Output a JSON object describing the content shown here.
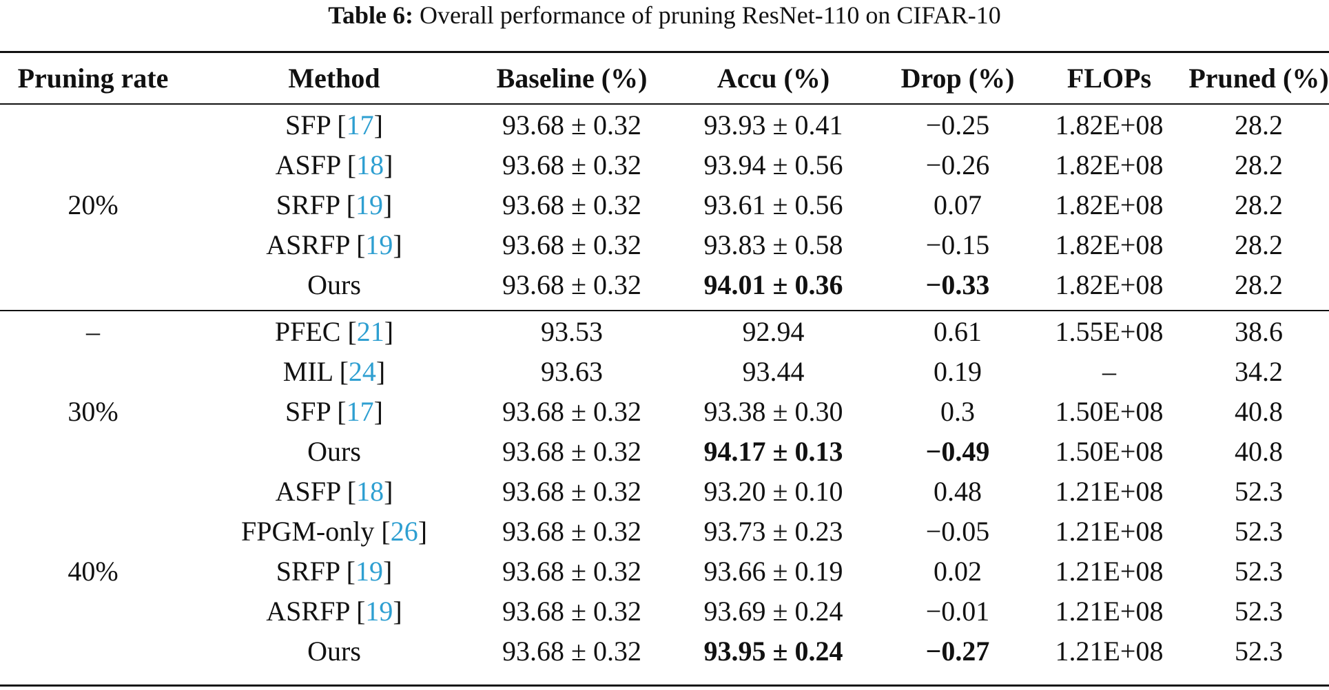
{
  "caption": {
    "label": "Table 6:",
    "text": "Overall performance of pruning ResNet-110 on CIFAR-10"
  },
  "headers": [
    "Pruning rate",
    "Method",
    "Baseline (%)",
    "Accu (%)",
    "Drop (%)",
    "FLOPs",
    "Pruned (%)"
  ],
  "group_a": {
    "rate": "20%",
    "rows": [
      {
        "method": "SFP",
        "ref": "17",
        "baseline": "93.68 ± 0.32",
        "accu": "93.93 ± 0.41",
        "drop": "−0.25",
        "flops": "1.82E+08",
        "pruned": "28.2",
        "best": false
      },
      {
        "method": "ASFP",
        "ref": "18",
        "baseline": "93.68 ± 0.32",
        "accu": "93.94 ± 0.56",
        "drop": "−0.26",
        "flops": "1.82E+08",
        "pruned": "28.2",
        "best": false
      },
      {
        "method": "SRFP",
        "ref": "19",
        "baseline": "93.68 ± 0.32",
        "accu": "93.61 ± 0.56",
        "drop": "0.07",
        "flops": "1.82E+08",
        "pruned": "28.2",
        "best": false
      },
      {
        "method": "ASRFP",
        "ref": "19",
        "baseline": "93.68 ± 0.32",
        "accu": "93.83 ± 0.58",
        "drop": "−0.15",
        "flops": "1.82E+08",
        "pruned": "28.2",
        "best": false
      },
      {
        "method": "Ours",
        "ref": "",
        "baseline": "93.68 ± 0.32",
        "accu": "94.01 ± 0.36",
        "drop": "−0.33",
        "flops": "1.82E+08",
        "pruned": "28.2",
        "best": true
      }
    ]
  },
  "group_b": {
    "rate_dash": "–",
    "rate_30": "30%",
    "rate_40": "40%",
    "rows": [
      {
        "method": "PFEC",
        "ref": "21",
        "baseline": "93.53",
        "accu": "92.94",
        "drop": "0.61",
        "flops": "1.55E+08",
        "pruned": "38.6",
        "best": false
      },
      {
        "method": "MIL",
        "ref": "24",
        "baseline": "93.63",
        "accu": "93.44",
        "drop": "0.19",
        "flops": "–",
        "pruned": "34.2",
        "best": false
      },
      {
        "method": "SFP",
        "ref": "17",
        "baseline": "93.68 ± 0.32",
        "accu": "93.38 ± 0.30",
        "drop": "0.3",
        "flops": "1.50E+08",
        "pruned": "40.8",
        "best": false
      },
      {
        "method": "Ours",
        "ref": "",
        "baseline": "93.68 ± 0.32",
        "accu": "94.17 ± 0.13",
        "drop": "−0.49",
        "flops": "1.50E+08",
        "pruned": "40.8",
        "best": true
      },
      {
        "method": "ASFP",
        "ref": "18",
        "baseline": "93.68 ± 0.32",
        "accu": "93.20 ± 0.10",
        "drop": "0.48",
        "flops": "1.21E+08",
        "pruned": "52.3",
        "best": false
      },
      {
        "method": "FPGM-only",
        "ref": "26",
        "baseline": "93.68 ± 0.32",
        "accu": "93.73 ± 0.23",
        "drop": "−0.05",
        "flops": "1.21E+08",
        "pruned": "52.3",
        "best": false
      },
      {
        "method": "SRFP",
        "ref": "19",
        "baseline": "93.68 ± 0.32",
        "accu": "93.66 ± 0.19",
        "drop": "0.02",
        "flops": "1.21E+08",
        "pruned": "52.3",
        "best": false
      },
      {
        "method": "ASRFP",
        "ref": "19",
        "baseline": "93.68 ± 0.32",
        "accu": "93.69 ± 0.24",
        "drop": "−0.01",
        "flops": "1.21E+08",
        "pruned": "52.3",
        "best": false
      },
      {
        "method": "Ours",
        "ref": "",
        "baseline": "93.68 ± 0.32",
        "accu": "93.95 ± 0.24",
        "drop": "−0.27",
        "flops": "1.21E+08",
        "pruned": "52.3",
        "best": true
      }
    ]
  }
}
